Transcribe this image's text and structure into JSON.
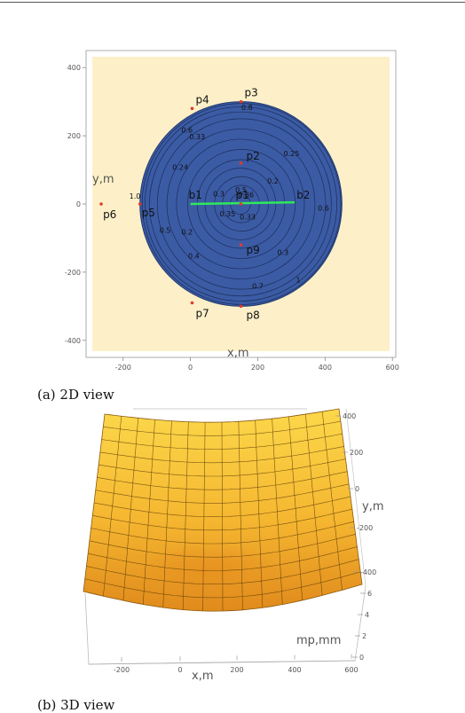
{
  "chart_data": [
    {
      "type": "contour",
      "caption": "(a) 2D view",
      "xlabel": "x,m",
      "ylabel": "y,m",
      "xlim": [
        -310,
        610
      ],
      "ylim": [
        -450,
        450
      ],
      "x_ticks": [
        "-200",
        "0",
        "200",
        "400",
        "600"
      ],
      "x_tick_values": [
        -200,
        0,
        200,
        400,
        600
      ],
      "y_ticks": [
        "400",
        "200",
        "0",
        "-200",
        "-400"
      ],
      "y_tick_values": [
        400,
        200,
        0,
        -200,
        -400
      ],
      "background_color": "#fdf0c8",
      "disc": {
        "center": [
          150,
          0
        ],
        "radius": 300,
        "color": "#3b5ba5"
      },
      "contour_radii": [
        30,
        55,
        80,
        105,
        130,
        160,
        190,
        220,
        250,
        270,
        285,
        295
      ],
      "points": [
        {
          "name": "p1",
          "x": 150,
          "y": 0
        },
        {
          "name": "p2",
          "x": 150,
          "y": 120
        },
        {
          "name": "p3",
          "x": 150,
          "y": 300
        },
        {
          "name": "p4",
          "x": 5,
          "y": 280
        },
        {
          "name": "p5",
          "x": -150,
          "y": 0
        },
        {
          "name": "p6",
          "x": -265,
          "y": 0
        },
        {
          "name": "p7",
          "x": 5,
          "y": -290
        },
        {
          "name": "p8",
          "x": 150,
          "y": -300
        },
        {
          "name": "p9",
          "x": 150,
          "y": -120
        }
      ],
      "line": {
        "from": {
          "name": "b1",
          "x": 0,
          "y": 0
        },
        "to": {
          "name": "b2",
          "x": 310,
          "y": 5
        },
        "color": "#2ee85a"
      },
      "contour_labels": [
        {
          "text": "0.8",
          "x": 168,
          "y": 276
        },
        {
          "text": "0.6",
          "x": -10,
          "y": 210
        },
        {
          "text": "0.33",
          "x": 20,
          "y": 190
        },
        {
          "text": "0.25",
          "x": 300,
          "y": 140
        },
        {
          "text": "0.24",
          "x": -30,
          "y": 100
        },
        {
          "text": "0.2",
          "x": 245,
          "y": 60
        },
        {
          "text": "0.5",
          "x": 150,
          "y": 34
        },
        {
          "text": "0.3",
          "x": 84,
          "y": 22
        },
        {
          "text": "0.36",
          "x": 165,
          "y": 20
        },
        {
          "text": "0.6",
          "x": 395,
          "y": -20
        },
        {
          "text": "0.35",
          "x": 110,
          "y": -36
        },
        {
          "text": "0.33",
          "x": 170,
          "y": -46
        },
        {
          "text": "0.5",
          "x": -75,
          "y": -84
        },
        {
          "text": "0.2",
          "x": -10,
          "y": -90
        },
        {
          "text": "0.3",
          "x": 275,
          "y": -150
        },
        {
          "text": "0.4",
          "x": 10,
          "y": -160
        },
        {
          "text": "1",
          "x": 320,
          "y": -230
        },
        {
          "text": "0.7",
          "x": 200,
          "y": -248
        },
        {
          "text": "1.0",
          "x": -165,
          "y": 15
        }
      ]
    },
    {
      "type": "surface",
      "caption": "(b) 3D view",
      "xlabel": "x,m",
      "ylabel": "y,m",
      "zlabel": "mp,mm",
      "x_ticks": [
        "-200",
        "0",
        "200",
        "400",
        "600"
      ],
      "y_ticks": [
        "400",
        "200",
        "0",
        "-200",
        "-400"
      ],
      "z_ticks": [
        "6",
        "4",
        "2",
        "0"
      ],
      "surface_color": "#f2b22e",
      "grid_lines": 14
    }
  ]
}
